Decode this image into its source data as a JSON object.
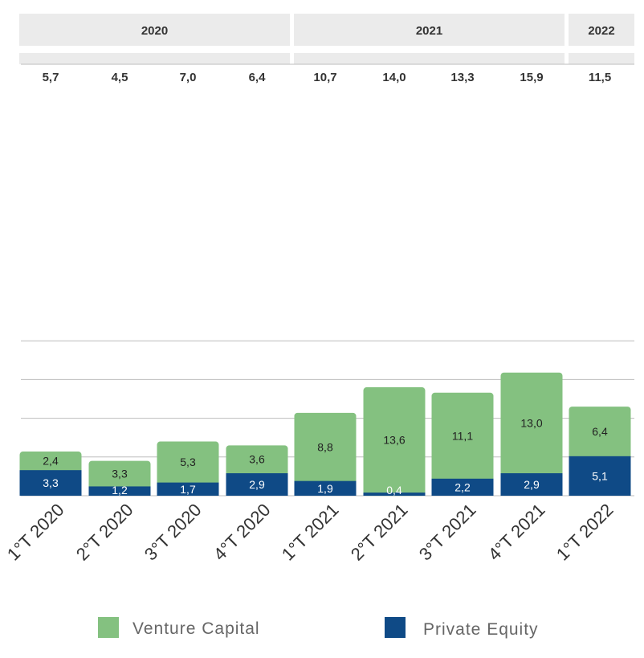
{
  "chart_data": {
    "type": "bar",
    "stacked": true,
    "categories": [
      "1°T 2020",
      "2°T 2020",
      "3°T 2020",
      "4°T 2020",
      "1°T 2021",
      "2°T 2021",
      "3°T 2021",
      "4°T 2021",
      "1°T 2022"
    ],
    "year_groups": [
      {
        "label": "2020",
        "categories": [
          "1°T 2020",
          "2°T 2020",
          "3°T 2020",
          "4°T 2020"
        ]
      },
      {
        "label": "2021",
        "categories": [
          "1°T 2021",
          "2°T 2021",
          "3°T 2021",
          "4°T 2021"
        ]
      },
      {
        "label": "2022",
        "categories": [
          "1°T 2022"
        ]
      }
    ],
    "totals": [
      "5,7",
      "4,5",
      "7,0",
      "6,4",
      "10,7",
      "14,0",
      "13,3",
      "15,9",
      "11,5"
    ],
    "series": [
      {
        "name": "Private Equity",
        "color": "#0f4a86",
        "values": [
          3.3,
          1.2,
          1.7,
          2.9,
          1.9,
          0.4,
          2.2,
          2.9,
          5.1
        ],
        "labels": [
          "3,3",
          "1,2",
          "1,7",
          "2,9",
          "1,9",
          "0,4",
          "2,2",
          "2,9",
          "5,1"
        ]
      },
      {
        "name": "Venture Capital",
        "color": "#84c180",
        "values": [
          2.4,
          3.3,
          5.3,
          3.6,
          8.8,
          13.6,
          11.1,
          13.0,
          6.4
        ],
        "labels": [
          "2,4",
          "3,3",
          "5,3",
          "3,6",
          "8,8",
          "13,6",
          "11,1",
          "13,0",
          "6,4"
        ]
      }
    ],
    "ylim": [
      0,
      20
    ],
    "grid": true,
    "legend": {
      "placement": "bottom",
      "items": [
        {
          "name": "Venture Capital",
          "color": "#84c180"
        },
        {
          "name": "Private Equity",
          "color": "#0f4a86"
        }
      ]
    },
    "colors": {
      "header_bg": "#ebebeb",
      "gridline": "#bdbdbd"
    }
  }
}
